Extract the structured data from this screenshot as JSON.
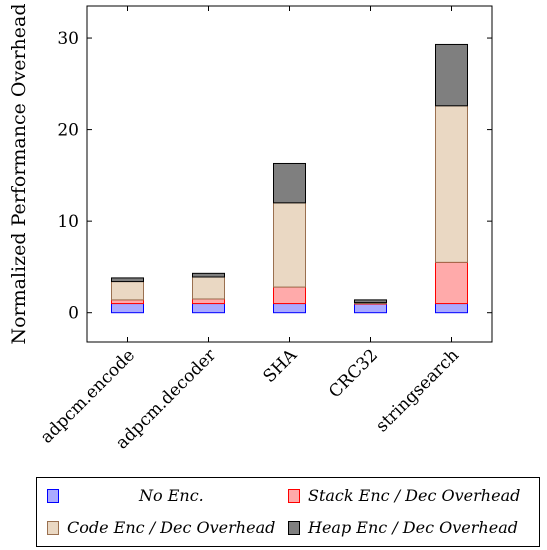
{
  "chart_data": {
    "type": "bar",
    "stacked": true,
    "title": "",
    "xlabel": "",
    "ylabel": "Normalized Performance Overhead",
    "ylim": [
      -3.2,
      33.5
    ],
    "yticks": [
      0,
      10,
      20,
      30
    ],
    "categories": [
      "adpcm.encode",
      "adpcm.decoder",
      "SHA",
      "CRC32",
      "stringsearch"
    ],
    "series": [
      {
        "name": "No Enc.",
        "values": [
          1.0,
          1.0,
          1.0,
          1.0,
          1.0
        ],
        "color": "#aaaaff",
        "stroke": "#0000ff"
      },
      {
        "name": "Stack Enc / Dec Overhead",
        "values": [
          0.4,
          0.5,
          1.8,
          0.0,
          4.5
        ],
        "color": "#ffaaaa",
        "stroke": "#ff0000"
      },
      {
        "name": "Code Enc / Dec Overhead",
        "values": [
          2.0,
          2.4,
          9.2,
          0.1,
          17.1
        ],
        "color": "#ead8c3",
        "stroke": "#9a7050"
      },
      {
        "name": "Heap Enc / Dec Overhead",
        "values": [
          0.4,
          0.4,
          4.3,
          0.3,
          6.7
        ],
        "color": "#7f7f7f",
        "stroke": "#000000"
      }
    ],
    "grid": false,
    "legend_position": "bottom"
  },
  "legend": {
    "no_enc": "No Enc.",
    "stack": "Stack Enc / Dec Overhead",
    "code": "Code Enc / Dec Overhead",
    "heap": "Heap Enc / Dec Overhead"
  }
}
